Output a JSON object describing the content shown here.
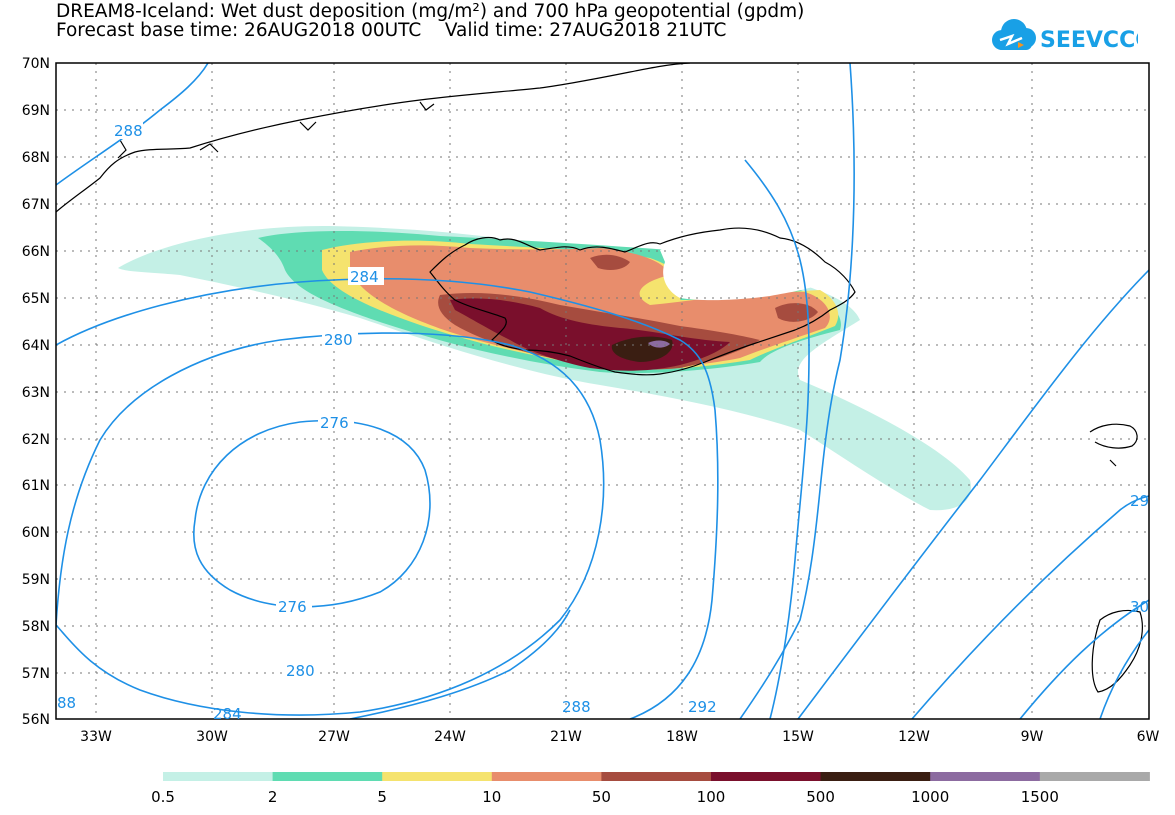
{
  "title_line1": "DREAM8-Iceland: Wet dust deposition (mg/m²) and 700 hPa geopotential (gpdm)",
  "title_line2": "Forecast base time: 26AUG2018 00UTC    Valid time: 27AUG2018 21UTC",
  "logo_text": "SEEVCCC",
  "lat_labels": [
    "70N",
    "69N",
    "68N",
    "67N",
    "66N",
    "65N",
    "64N",
    "63N",
    "62N",
    "61N",
    "60N",
    "59N",
    "58N",
    "57N",
    "56N"
  ],
  "lon_labels": [
    "33W",
    "30W",
    "27W",
    "24W",
    "21W",
    "18W",
    "15W",
    "12W",
    "9W",
    "6W"
  ],
  "contour_labels": {
    "c288_nw": "288",
    "c284_mid": "284",
    "c280_top": "280",
    "c276_top": "276",
    "c276_bot": "276",
    "c280_bot": "280",
    "c284_bot": "284",
    "c288_sw": "88",
    "c288_bot": "288",
    "c292_bot": "292",
    "c29_right": "29",
    "c30_right": "30"
  },
  "legend": {
    "labels": [
      "0.5",
      "2",
      "5",
      "10",
      "50",
      "100",
      "500",
      "1000",
      "1500"
    ],
    "colors": [
      "#c4f0e6",
      "#5fdcb2",
      "#f5e36e",
      "#e88d6c",
      "#a64c3f",
      "#7a0f2c",
      "#3a1e12",
      "#8c6ba0",
      "#a9a9a9"
    ]
  },
  "colors": {
    "contour": "#1e90e6",
    "coast": "#000000"
  }
}
